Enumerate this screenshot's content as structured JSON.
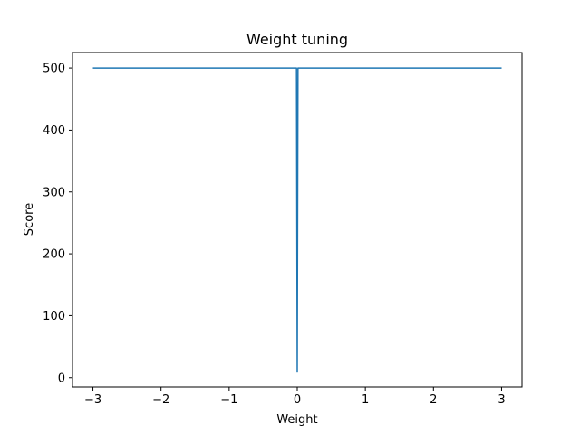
{
  "chart_data": {
    "type": "line",
    "title": "Weight tuning",
    "xlabel": "Weight",
    "ylabel": "Score",
    "xlim": [
      -3.3,
      3.3
    ],
    "ylim": [
      -15,
      525
    ],
    "xticks": [
      -3,
      -2,
      -1,
      0,
      1,
      2,
      3
    ],
    "xtick_labels": [
      "−3",
      "−2",
      "−1",
      "0",
      "1",
      "2",
      "3"
    ],
    "yticks": [
      0,
      100,
      200,
      300,
      400,
      500
    ],
    "ytick_labels": [
      "0",
      "100",
      "200",
      "300",
      "400",
      "500"
    ],
    "grid": false,
    "series": [
      {
        "color": "#1f77b4",
        "x": [
          -3.0,
          -0.01,
          0.0,
          0.01,
          0.02,
          3.0
        ],
        "y": [
          500,
          500,
          9,
          500,
          500,
          500
        ]
      }
    ]
  }
}
